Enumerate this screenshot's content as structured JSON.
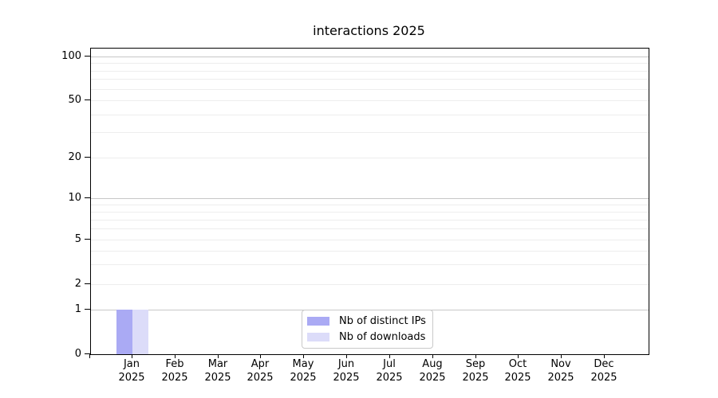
{
  "chart_data": {
    "type": "bar",
    "title": "interactions 2025",
    "categories": [
      "Jan",
      "Feb",
      "Mar",
      "Apr",
      "May",
      "Jun",
      "Jul",
      "Aug",
      "Sep",
      "Oct",
      "Nov",
      "Dec"
    ],
    "year_label": "2025",
    "series": [
      {
        "name": "Nb of distinct IPs",
        "color": "#aaaaf4",
        "values": [
          1,
          0,
          0,
          0,
          0,
          0,
          0,
          0,
          0,
          0,
          0,
          0
        ]
      },
      {
        "name": "Nb of downloads",
        "color": "#dcdcf9",
        "values": [
          1,
          0,
          0,
          0,
          0,
          0,
          0,
          0,
          0,
          0,
          0,
          0
        ]
      }
    ],
    "y_axis": {
      "scale": "symlog",
      "tick_labels": [
        0,
        1,
        2,
        5,
        10,
        20,
        50,
        100
      ],
      "minor_gridline_values": [
        3,
        4,
        6,
        7,
        8,
        9,
        30,
        40,
        60,
        70,
        80,
        90
      ],
      "major_gridline_values": [
        1,
        10,
        100
      ],
      "ylim": [
        0,
        114
      ]
    },
    "x_axis": {
      "label_lines": 2
    },
    "legend": {
      "position": "lower center"
    },
    "colors": {
      "major_grid": "#c7c7c7",
      "minor_grid": "#ededed",
      "spine": "#000000",
      "background": "#ffffff"
    }
  }
}
